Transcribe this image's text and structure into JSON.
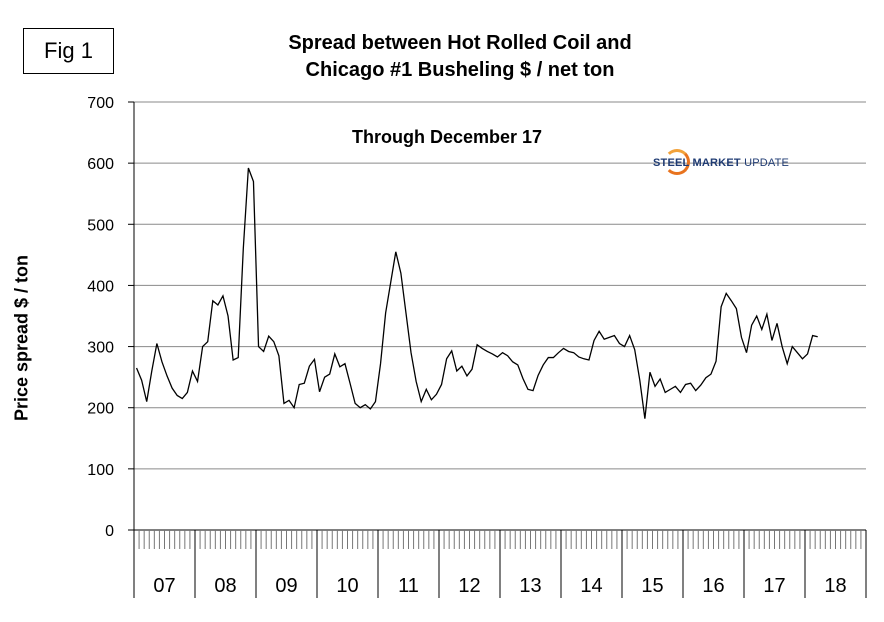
{
  "figure_label": "Fig 1",
  "logo": {
    "name": "steel-market-update-logo",
    "bold": "STEEL",
    "regular_bold": "MARKET",
    "light": "UPDATE"
  },
  "chart_data": {
    "type": "line",
    "title": "Spread between Hot Rolled Coil and\nChicago #1 Busheling  $ / net ton",
    "title_lines": [
      "Spread between Hot Rolled Coil and",
      "Chicago #1 Busheling  $ / net ton"
    ],
    "annotation": "Through December 17",
    "xlabel": "",
    "ylabel": "Price spread $ / ton",
    "ylim": [
      0,
      700
    ],
    "yticks": [
      0,
      100,
      200,
      300,
      400,
      500,
      600,
      700
    ],
    "gridlines": true,
    "year_labels": [
      "07",
      "08",
      "09",
      "10",
      "11",
      "12",
      "13",
      "14",
      "15",
      "16",
      "17",
      "18"
    ],
    "months_total": 144,
    "series": [
      {
        "name": "Spread",
        "color": "#000000",
        "start_month_index": 0,
        "values": [
          265,
          245,
          210,
          260,
          305,
          275,
          252,
          232,
          220,
          215,
          225,
          260,
          243,
          300,
          308,
          375,
          368,
          383,
          350,
          278,
          282,
          460,
          592,
          570,
          300,
          292,
          317,
          308,
          285,
          207,
          212,
          200,
          238,
          240,
          268,
          279,
          226,
          250,
          255,
          288,
          267,
          272,
          240,
          207,
          200,
          205,
          198,
          210,
          272,
          355,
          405,
          455,
          420,
          355,
          290,
          243,
          210,
          230,
          213,
          222,
          238,
          280,
          293,
          260,
          268,
          252,
          263,
          303,
          297,
          292,
          288,
          283,
          290,
          285,
          275,
          270,
          248,
          230,
          228,
          253,
          270,
          282,
          282,
          290,
          297,
          292,
          290,
          283,
          280,
          278,
          310,
          325,
          312,
          315,
          318,
          305,
          300,
          318,
          295,
          245,
          182,
          258,
          235,
          247,
          225,
          230,
          235,
          225,
          238,
          240,
          228,
          237,
          249,
          255,
          276,
          365,
          387,
          375,
          362,
          315,
          290,
          335,
          350,
          328,
          353,
          310,
          338,
          300,
          272,
          300,
          290,
          280,
          288,
          318,
          316
        ]
      }
    ]
  }
}
